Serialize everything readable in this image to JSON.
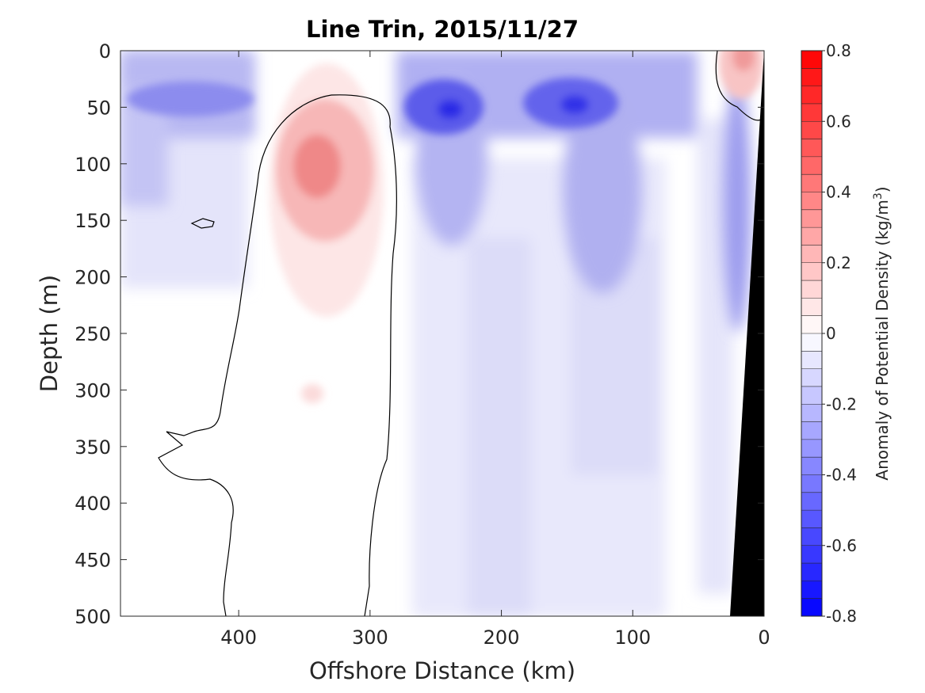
{
  "chart_data": {
    "type": "heatmap",
    "title": "Line Trin, 2015/11/27",
    "xlabel": "Offshore Distance (km)",
    "ylabel": "Depth (m)",
    "xlim": [
      490,
      0
    ],
    "ylim": [
      0,
      500
    ],
    "x_reversed": true,
    "y_reversed": true,
    "x_ticks": [
      400,
      300,
      200,
      100,
      0
    ],
    "y_ticks": [
      0,
      50,
      100,
      150,
      200,
      250,
      300,
      350,
      400,
      450,
      500
    ],
    "colorbar": {
      "label": "Anomaly of Potential Density (kg/m",
      "label_superscript": "3",
      "label_suffix": ")",
      "clim": [
        -0.8,
        0.8
      ],
      "tick_values": [
        0.8,
        0.6,
        0.4,
        0.2,
        0,
        -0.2,
        -0.4,
        -0.6,
        -0.8
      ],
      "tick_labels": [
        "0.8",
        "0.6",
        "0.4",
        "0.2",
        "0",
        "-0.2",
        "-0.4",
        "-0.6",
        "-0.8"
      ],
      "levels": 32,
      "colormap": "blue-white-red"
    },
    "features": [
      {
        "name": "positive anomaly core",
        "x": 340,
        "depth": 105,
        "value": 0.3
      },
      {
        "name": "surface negative core",
        "x": 240,
        "depth": 50,
        "value": -0.6
      },
      {
        "name": "surface negative core",
        "x": 150,
        "depth": 45,
        "value": -0.55
      },
      {
        "name": "nearshore positive",
        "x": 15,
        "depth": 5,
        "value": 0.3
      },
      {
        "name": "offshore negative band",
        "x": 440,
        "depth": 45,
        "value": -0.25
      }
    ],
    "bathymetry": {
      "color": "#000000"
    },
    "grid": false
  }
}
